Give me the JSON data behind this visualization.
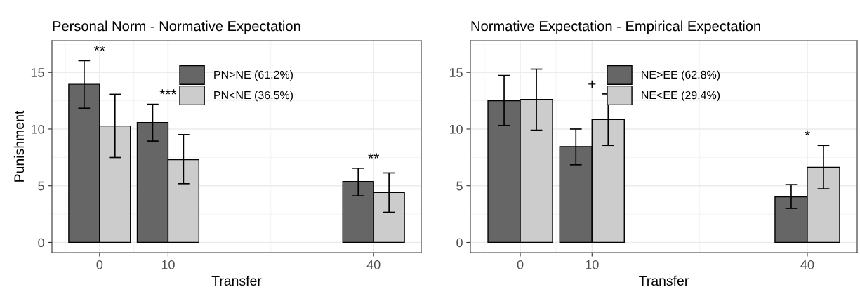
{
  "chart_data": [
    {
      "type": "bar",
      "title": "Personal Norm - Normative Expectation",
      "xlabel": "Transfer",
      "ylabel": "Punishment",
      "x": [
        0,
        10,
        40
      ],
      "xlim": [
        -6.95,
        46.95
      ],
      "xticks": [
        0,
        10,
        40
      ],
      "ylim": [
        -0.9,
        17.8
      ],
      "yticks": [
        0,
        5,
        10,
        15
      ],
      "grid": true,
      "legend": "top",
      "series": [
        {
          "name": "PN>NE (61.2%)",
          "color": "#666666",
          "values": [
            13.95,
            10.58,
            5.37
          ],
          "errors": [
            [
              11.84,
              16.04
            ],
            [
              8.94,
              12.19
            ],
            [
              4.11,
              6.54
            ]
          ]
        },
        {
          "name": "PN<NE (36.5%)",
          "color": "#cccccc",
          "values": [
            10.27,
            7.3,
            4.4
          ],
          "errors": [
            [
              7.49,
              13.07
            ],
            [
              5.18,
              9.51
            ],
            [
              2.66,
              6.13
            ]
          ]
        }
      ],
      "annotations": [
        "**",
        "***",
        "**"
      ]
    },
    {
      "type": "bar",
      "title": "Normative Expectation - Empirical Expectation",
      "xlabel": "Transfer",
      "x": [
        0,
        10,
        40
      ],
      "xlim": [
        -6.95,
        46.95
      ],
      "xticks": [
        0,
        10,
        40
      ],
      "ylim": [
        -0.9,
        17.8
      ],
      "yticks": [
        0,
        5,
        10,
        15
      ],
      "grid": true,
      "legend": "top",
      "series": [
        {
          "name": "NE>EE (62.8%)",
          "color": "#666666",
          "values": [
            12.51,
            8.46,
            4.02
          ],
          "errors": [
            [
              10.32,
              14.73
            ],
            [
              6.85,
              10.0
            ],
            [
              3.0,
              5.1
            ]
          ]
        },
        {
          "name": "NE<EE (29.4%)",
          "color": "#cccccc",
          "values": [
            12.61,
            10.85,
            6.63
          ],
          "errors": [
            [
              9.9,
              15.29
            ],
            [
              8.56,
              13.1
            ],
            [
              4.73,
              8.56
            ]
          ]
        }
      ],
      "annotations": [
        "+",
        "*"
      ]
    }
  ]
}
